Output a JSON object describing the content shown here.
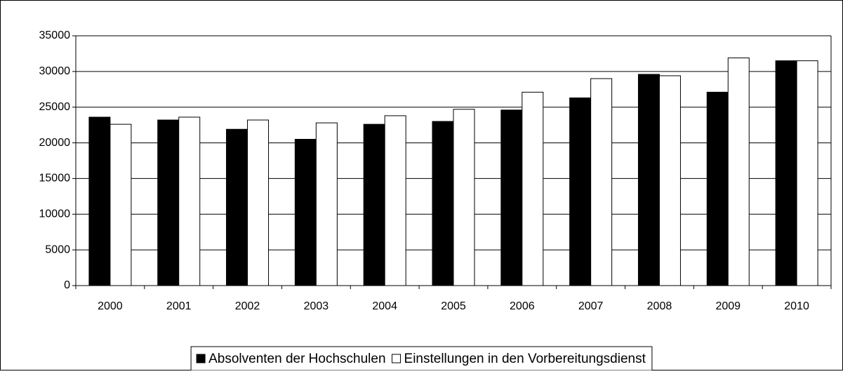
{
  "chart_data": {
    "type": "bar",
    "categories": [
      "2000",
      "2001",
      "2002",
      "2003",
      "2004",
      "2005",
      "2006",
      "2007",
      "2008",
      "2009",
      "2010"
    ],
    "series": [
      {
        "name": "Absolventen der Hochschulen",
        "color": "#000000",
        "values": [
          23600,
          23200,
          21900,
          20500,
          22600,
          23000,
          24600,
          26300,
          29600,
          27100,
          31500
        ]
      },
      {
        "name": "Einstellungen in den Vorbereitungsdienst",
        "color": "#ffffff",
        "values": [
          22600,
          23600,
          23200,
          22800,
          23800,
          24700,
          27100,
          29000,
          29400,
          31900,
          31500
        ]
      }
    ],
    "ylim": [
      0,
      35000
    ],
    "yticks": [
      0,
      5000,
      10000,
      15000,
      20000,
      25000,
      30000,
      35000
    ],
    "grid": true,
    "legend": "bottom"
  }
}
